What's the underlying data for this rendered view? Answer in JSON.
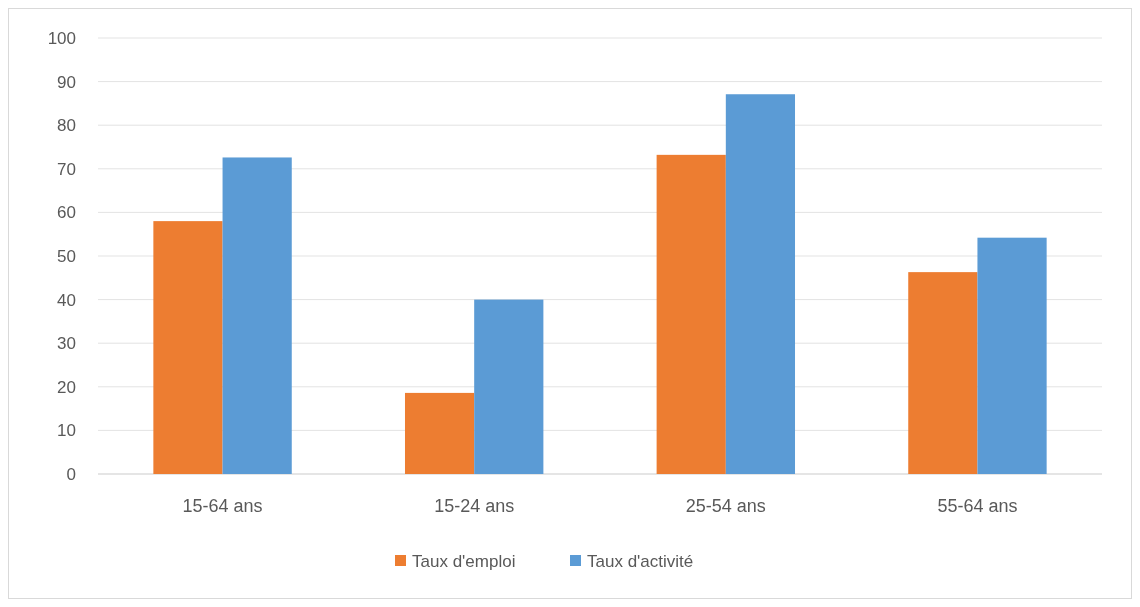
{
  "chart_data": {
    "type": "bar",
    "categories": [
      "15-64 ans",
      "15-24 ans",
      "25-54 ans",
      "55-64 ans"
    ],
    "series": [
      {
        "name": "Taux d'emploi",
        "color": "#ed7d31",
        "values": [
          58,
          18.6,
          73.2,
          46.3
        ]
      },
      {
        "name": "Taux d'activité",
        "color": "#5b9bd5",
        "values": [
          72.6,
          40,
          87.1,
          54.2
        ]
      }
    ],
    "ylim": [
      0,
      100
    ],
    "yticks": [
      0,
      10,
      20,
      30,
      40,
      50,
      60,
      70,
      80,
      90,
      100
    ],
    "grid": "y",
    "legend": "bottom"
  }
}
